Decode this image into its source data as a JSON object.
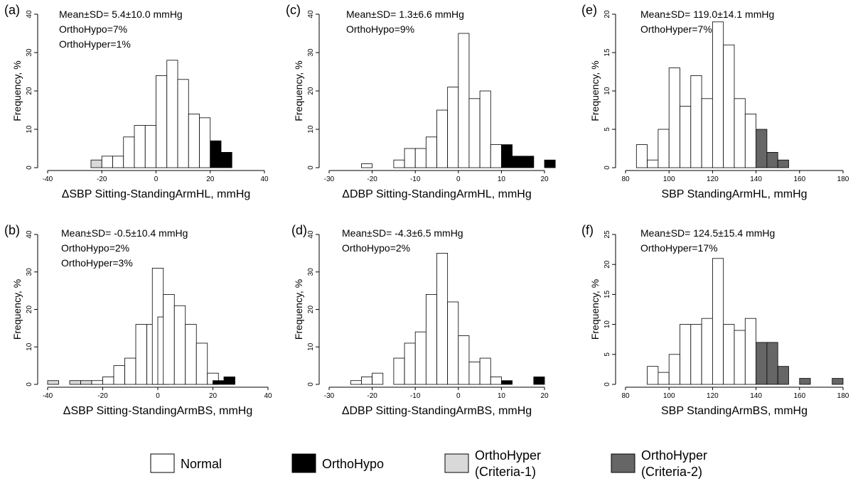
{
  "figure": {
    "legend": [
      {
        "key": "normal",
        "label": "Normal",
        "color": "#ffffff"
      },
      {
        "key": "orthohypo",
        "label": "OrthoHypo",
        "color": "#000000"
      },
      {
        "key": "orthohyper1",
        "label": "OrthoHyper",
        "label2": "(Criteria-1)",
        "color": "#d9d9d9"
      },
      {
        "key": "orthohyper2",
        "label": "OrthoHyper",
        "label2": "(Criteria-2)",
        "color": "#666666"
      }
    ]
  },
  "chart_data": [
    {
      "id": "a",
      "panel_label": "(a)",
      "type": "bar",
      "xlabel": "ΔSBP Sitting-StandingArmHL, mmHg",
      "ylabel": "Frequency, %",
      "xlim": [
        -40,
        40
      ],
      "ylim": [
        0,
        40
      ],
      "xticks": [
        -40,
        -20,
        0,
        20,
        40
      ],
      "yticks": [
        0,
        10,
        20,
        30,
        40
      ],
      "bin_width": 4,
      "annotations": [
        "Mean±SD= 5.4±10.0  mmHg",
        "OrthoHypo=7%",
        "OrthoHyper=1%"
      ],
      "bins": [
        {
          "x0": -24,
          "value": 2,
          "class": "orthohyper1"
        },
        {
          "x0": -20,
          "value": 3,
          "class": "normal"
        },
        {
          "x0": -16,
          "value": 3,
          "class": "normal"
        },
        {
          "x0": -12,
          "value": 8,
          "class": "normal"
        },
        {
          "x0": -8,
          "value": 11,
          "class": "normal"
        },
        {
          "x0": -4,
          "value": 11,
          "class": "normal"
        },
        {
          "x0": 0,
          "value": 24,
          "class": "normal"
        },
        {
          "x0": 4,
          "value": 28,
          "class": "normal"
        },
        {
          "x0": 8,
          "value": 23,
          "class": "normal"
        },
        {
          "x0": 12,
          "value": 14,
          "class": "normal"
        },
        {
          "x0": 16,
          "value": 13,
          "class": "normal"
        },
        {
          "x0": 20,
          "value": 7,
          "class": "orthohypo"
        },
        {
          "x0": 24,
          "value": 4,
          "class": "orthohypo"
        }
      ]
    },
    {
      "id": "c",
      "panel_label": "(c)",
      "type": "bar",
      "xlabel": "ΔDBP Sitting-StandingArmHL, mmHg",
      "ylabel": "Frequency, %",
      "xlim": [
        -30,
        20
      ],
      "ylim": [
        0,
        40
      ],
      "xticks": [
        -30,
        -20,
        -10,
        0,
        10,
        20
      ],
      "yticks": [
        0,
        10,
        20,
        30,
        40
      ],
      "bin_width": 2.5,
      "annotations": [
        "Mean±SD= 1.3±6.6 mmHg",
        "OrthoHypo=9%"
      ],
      "bins": [
        {
          "x0": -22.5,
          "value": 1,
          "class": "normal"
        },
        {
          "x0": -15,
          "value": 2,
          "class": "normal"
        },
        {
          "x0": -12.5,
          "value": 5,
          "class": "normal"
        },
        {
          "x0": -10,
          "value": 5,
          "class": "normal"
        },
        {
          "x0": -7.5,
          "value": 8,
          "class": "normal"
        },
        {
          "x0": -5,
          "value": 15,
          "class": "normal"
        },
        {
          "x0": -2.5,
          "value": 21,
          "class": "normal"
        },
        {
          "x0": 0,
          "value": 35,
          "class": "normal"
        },
        {
          "x0": 2.5,
          "value": 18,
          "class": "normal"
        },
        {
          "x0": 5,
          "value": 20,
          "class": "normal"
        },
        {
          "x0": 7.5,
          "value": 6,
          "class": "normal"
        },
        {
          "x0": 10,
          "value": 6,
          "class": "orthohypo"
        },
        {
          "x0": 12.5,
          "value": 3,
          "class": "orthohypo"
        },
        {
          "x0": 15,
          "value": 3,
          "class": "orthohypo"
        },
        {
          "x0": 20,
          "value": 2,
          "class": "orthohypo"
        }
      ]
    },
    {
      "id": "e",
      "panel_label": "(e)",
      "type": "bar",
      "xlabel": "SBP StandingArmHL, mmHg",
      "ylabel": "Frequency, %",
      "xlim": [
        80,
        180
      ],
      "ylim": [
        0,
        20
      ],
      "xticks": [
        80,
        100,
        120,
        140,
        160,
        180
      ],
      "yticks": [
        0,
        5,
        10,
        15,
        20
      ],
      "bin_width": 5,
      "annotations": [
        "Mean±SD= 119.0±14.1 mmHg",
        "OrthoHyper=7%"
      ],
      "bins": [
        {
          "x0": 85,
          "value": 3,
          "class": "normal"
        },
        {
          "x0": 90,
          "value": 1,
          "class": "normal"
        },
        {
          "x0": 95,
          "value": 5,
          "class": "normal"
        },
        {
          "x0": 100,
          "value": 13,
          "class": "normal"
        },
        {
          "x0": 105,
          "value": 8,
          "class": "normal"
        },
        {
          "x0": 110,
          "value": 12,
          "class": "normal"
        },
        {
          "x0": 115,
          "value": 9,
          "class": "normal"
        },
        {
          "x0": 120,
          "value": 19,
          "class": "normal"
        },
        {
          "x0": 125,
          "value": 16,
          "class": "normal"
        },
        {
          "x0": 130,
          "value": 9,
          "class": "normal"
        },
        {
          "x0": 135,
          "value": 7,
          "class": "normal"
        },
        {
          "x0": 140,
          "value": 5,
          "class": "orthohyper2"
        },
        {
          "x0": 145,
          "value": 2,
          "class": "orthohyper2"
        },
        {
          "x0": 150,
          "value": 1,
          "class": "orthohyper2"
        }
      ]
    },
    {
      "id": "b",
      "panel_label": "(b)",
      "type": "bar",
      "xlabel": "ΔSBP Sitting-StandingArmBS, mmHg",
      "ylabel": "Frequency, %",
      "xlim": [
        -40,
        40
      ],
      "ylim": [
        0,
        40
      ],
      "xticks": [
        -40,
        -20,
        0,
        20,
        40
      ],
      "yticks": [
        0,
        10,
        20,
        30,
        40
      ],
      "bin_width": 4,
      "annotations": [
        "Mean±SD= -0.5±10.4 mmHg",
        "OrthoHypo=2%",
        "OrthoHyper=3%"
      ],
      "bins": [
        {
          "x0": -40,
          "value": 1,
          "class": "orthohyper1"
        },
        {
          "x0": -32,
          "value": 1,
          "class": "orthohyper1"
        },
        {
          "x0": -28,
          "value": 1,
          "class": "orthohyper1"
        },
        {
          "x0": -24,
          "value": 1,
          "class": "normal"
        },
        {
          "x0": -20,
          "value": 2,
          "class": "normal"
        },
        {
          "x0": -16,
          "value": 5,
          "class": "normal"
        },
        {
          "x0": -12,
          "value": 7,
          "class": "normal"
        },
        {
          "x0": -8,
          "value": 16,
          "class": "normal"
        },
        {
          "x0": -4,
          "value": 16,
          "class": "normal"
        },
        {
          "x0": -2,
          "value": 31,
          "class": "normal"
        },
        {
          "x0": 0,
          "value": 18,
          "class": "normal"
        },
        {
          "x0": 2,
          "value": 24,
          "class": "normal"
        },
        {
          "x0": 6,
          "value": 21,
          "class": "normal"
        },
        {
          "x0": 10,
          "value": 16,
          "class": "normal"
        },
        {
          "x0": 14,
          "value": 11,
          "class": "normal"
        },
        {
          "x0": 18,
          "value": 3,
          "class": "normal"
        },
        {
          "x0": 20,
          "value": 1,
          "class": "orthohypo"
        },
        {
          "x0": 24,
          "value": 2,
          "class": "orthohypo"
        }
      ]
    },
    {
      "id": "d",
      "panel_label": "(d)",
      "type": "bar",
      "xlabel": "ΔDBP Sitting-StandingArmBS, mmHg",
      "ylabel": "Frequency, %",
      "xlim": [
        -30,
        20
      ],
      "ylim": [
        0,
        40
      ],
      "xticks": [
        -30,
        -20,
        -10,
        0,
        10,
        20
      ],
      "yticks": [
        0,
        10,
        20,
        30,
        40
      ],
      "bin_width": 2.5,
      "annotations": [
        "Mean±SD= -4.3±6.5 mmHg",
        "OrthoHypo=2%"
      ],
      "bins": [
        {
          "x0": -25,
          "value": 1,
          "class": "normal"
        },
        {
          "x0": -22.5,
          "value": 2,
          "class": "normal"
        },
        {
          "x0": -20,
          "value": 3,
          "class": "normal"
        },
        {
          "x0": -15,
          "value": 7,
          "class": "normal"
        },
        {
          "x0": -12.5,
          "value": 11,
          "class": "normal"
        },
        {
          "x0": -10,
          "value": 14,
          "class": "normal"
        },
        {
          "x0": -7.5,
          "value": 24,
          "class": "normal"
        },
        {
          "x0": -5,
          "value": 35,
          "class": "normal"
        },
        {
          "x0": -2.5,
          "value": 22,
          "class": "normal"
        },
        {
          "x0": 0,
          "value": 13,
          "class": "normal"
        },
        {
          "x0": 2.5,
          "value": 6,
          "class": "normal"
        },
        {
          "x0": 5,
          "value": 7,
          "class": "normal"
        },
        {
          "x0": 7.5,
          "value": 2,
          "class": "normal"
        },
        {
          "x0": 10,
          "value": 1,
          "class": "orthohypo"
        },
        {
          "x0": 17.5,
          "value": 2,
          "class": "orthohypo"
        }
      ]
    },
    {
      "id": "f",
      "panel_label": "(f)",
      "type": "bar",
      "xlabel": "SBP StandingArmBS, mmHg",
      "ylabel": "Frequency, %",
      "xlim": [
        80,
        180
      ],
      "ylim": [
        0,
        25
      ],
      "xticks": [
        80,
        100,
        120,
        140,
        160,
        180
      ],
      "yticks": [
        0,
        5,
        10,
        15,
        20,
        25
      ],
      "bin_width": 5,
      "annotations": [
        "Mean±SD= 124.5±15.4 mmHg",
        "OrthoHyper=17%"
      ],
      "bins": [
        {
          "x0": 90,
          "value": 3,
          "class": "normal"
        },
        {
          "x0": 95,
          "value": 2,
          "class": "normal"
        },
        {
          "x0": 100,
          "value": 5,
          "class": "normal"
        },
        {
          "x0": 105,
          "value": 10,
          "class": "normal"
        },
        {
          "x0": 110,
          "value": 10,
          "class": "normal"
        },
        {
          "x0": 115,
          "value": 11,
          "class": "normal"
        },
        {
          "x0": 120,
          "value": 21,
          "class": "normal"
        },
        {
          "x0": 125,
          "value": 10,
          "class": "normal"
        },
        {
          "x0": 130,
          "value": 9,
          "class": "normal"
        },
        {
          "x0": 135,
          "value": 11,
          "class": "normal"
        },
        {
          "x0": 140,
          "value": 7,
          "class": "orthohyper2"
        },
        {
          "x0": 145,
          "value": 7,
          "class": "orthohyper2"
        },
        {
          "x0": 150,
          "value": 3,
          "class": "orthohyper2"
        },
        {
          "x0": 160,
          "value": 1,
          "class": "orthohyper2"
        },
        {
          "x0": 175,
          "value": 1,
          "class": "orthohyper2"
        }
      ]
    }
  ]
}
